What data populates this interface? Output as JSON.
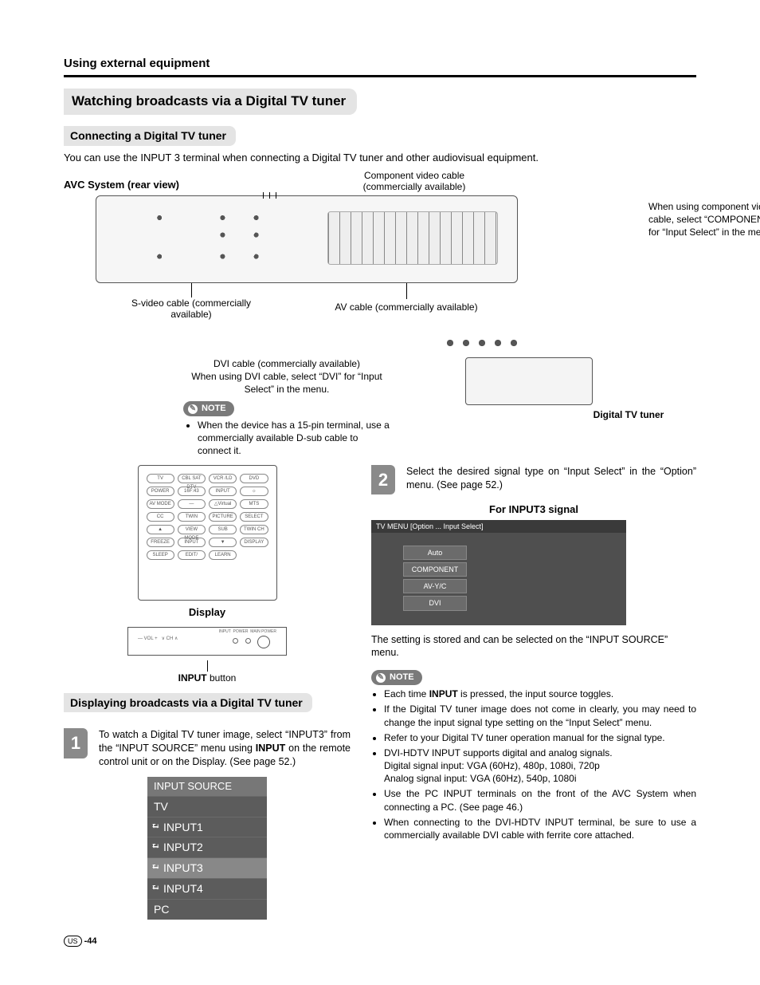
{
  "header": {
    "section": "Using external equipment"
  },
  "title": "Watching broadcasts via a Digital TV tuner",
  "subtitle1": "Connecting a Digital TV tuner",
  "intro": "You can use the INPUT 3 terminal when connecting a Digital TV tuner and other audiovisual equipment.",
  "diagram": {
    "avc_label": "AVC System (rear view)",
    "component_cable": "Component video cable\n(commercially available)",
    "side_note": "When using component video cable, select “COMPONENT” for “Input Select” in the menu.",
    "svideo": "S-video cable\n(commercially available)",
    "avcable": "AV cable\n(commercially available)",
    "dvi_line1": "DVI cable (commercially available)",
    "dvi_line2": "When using DVI cable, select “DVI” for “Input Select” in the menu.",
    "note_label": "NOTE",
    "dvi_note": "When the device has a 15-pin terminal, use a commercially available D-sub cable to connect it.",
    "tuner_label": "Digital TV tuner"
  },
  "remote": {
    "caption": "Display",
    "input_caption_bold": "INPUT",
    "input_caption_rest": " button",
    "buttons": [
      "TV",
      "CBL SAT DTV",
      "VCR /LD",
      "DVD",
      "POWER",
      "16F:43",
      "INPUT",
      "☼",
      "AV MODE",
      "—",
      "△Virtual",
      "MTS",
      "CC",
      "TWIN",
      "PICTURE",
      "SELECT",
      "▲",
      "VIEW MODE",
      "SUB",
      "TWIN CH",
      "FREEZE",
      "INPUT",
      "▼",
      "DISPLAY",
      "SLEEP",
      "EDIT/",
      "LEARN"
    ]
  },
  "subtitle2": "Displaying broadcasts via a Digital TV tuner",
  "step1": {
    "num": "1",
    "text_a": "To watch a Digital TV tuner image, select “INPUT3” from the “INPUT SOURCE” menu using ",
    "text_bold": "INPUT",
    "text_b": " on the remote control unit or on the Display. (See page 52.)"
  },
  "input_source": {
    "header": "INPUT SOURCE",
    "rows": [
      "TV",
      "INPUT1",
      "INPUT2",
      "INPUT3",
      "INPUT4",
      "PC"
    ],
    "selected_index": 3
  },
  "step2": {
    "num": "2",
    "text": "Select the desired signal type on “Input Select” in the “Option” menu. (See page 52.)",
    "menu_title": "For INPUT3 signal",
    "menu_bar": "TV MENU    [Option ... Input Select]",
    "options": [
      "Auto",
      "COMPONENT",
      "AV-Y/C",
      "DVI"
    ],
    "after": "The setting is stored and can be selected on the “INPUT SOURCE” menu."
  },
  "notes": {
    "label": "NOTE",
    "items": [
      {
        "pre": "Each time ",
        "bold": "INPUT",
        "post": " is pressed, the input source toggles."
      },
      {
        "pre": "If the Digital TV tuner image does not come in clearly, you may need to change the input signal type setting on the “Input Select” menu.",
        "bold": "",
        "post": ""
      },
      {
        "pre": "Refer to your Digital TV tuner operation manual for the signal type.",
        "bold": "",
        "post": ""
      },
      {
        "pre": "DVI-HDTV INPUT supports digital and analog signals.\nDigital signal input: VGA (60Hz), 480p, 1080i, 720p\nAnalog signal input: VGA (60Hz), 540p, 1080i",
        "bold": "",
        "post": ""
      },
      {
        "pre": "Use the PC INPUT terminals on the front of the AVC System when connecting a PC. (See page 46.)",
        "bold": "",
        "post": ""
      },
      {
        "pre": "When connecting to the DVI-HDTV INPUT terminal, be sure to use a commercially available DVI cable with ferrite core attached.",
        "bold": "",
        "post": ""
      }
    ]
  },
  "footer": {
    "us": "US",
    "page": "-44"
  },
  "colors": {
    "pill_bg": "#e4e4e4",
    "note_bg": "#7a7a7a",
    "menu_bg": "#4f4f4f",
    "menu_opt": "#6b6b6b",
    "src_row": "#5c5c5c",
    "src_sel": "#888888"
  }
}
